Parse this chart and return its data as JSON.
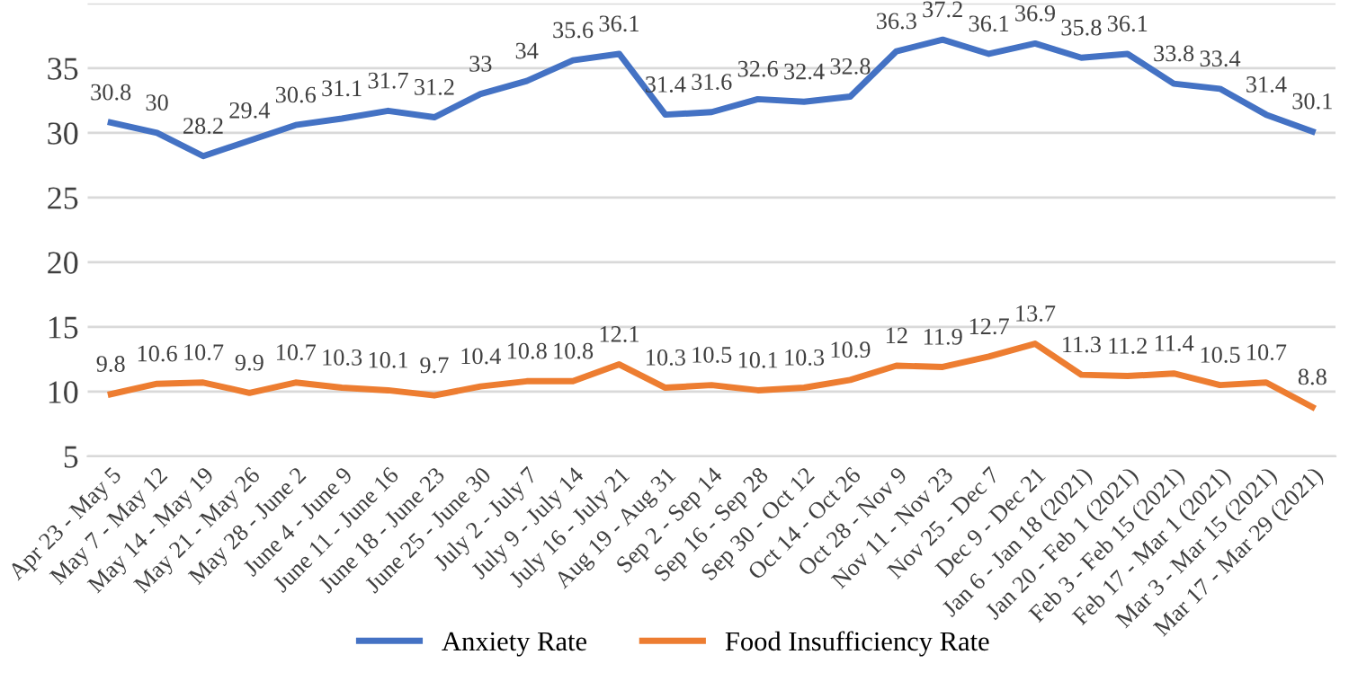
{
  "chart_data": {
    "type": "line",
    "categories": [
      "Apr 23 - May 5",
      "May 7 - May 12",
      "May 14 - May 19",
      "May 21 - May 26",
      "May 28 - June 2",
      "June 4 - June 9",
      "June 11 - June 16",
      "June 18 - June 23",
      "June 25 - June 30",
      "July 2 - July 7",
      "July 9 - July 14",
      "July 16 - July 21",
      "Aug 19 - Aug 31",
      "Sep 2 - Sep 14",
      "Sep 16 - Sep 28",
      "Sep 30 - Oct 12",
      "Oct 14 - Oct 26",
      "Oct 28 - Nov 9",
      "Nov 11 - Nov 23",
      "Nov 25 - Dec 7",
      "Dec 9 - Dec 21",
      "Jan 6 - Jan 18 (2021)",
      "Jan 20 - Feb 1 (2021)",
      "Feb 3 - Feb 15 (2021)",
      "Feb 17 - Mar 1 (2021)",
      "Mar 3 - Mar 15 (2021)",
      "Mar 17 - Mar 29 (2021)"
    ],
    "series": [
      {
        "name": "Anxiety Rate",
        "color": "#4472c4",
        "values": [
          30.8,
          30,
          28.2,
          29.4,
          30.6,
          31.1,
          31.7,
          31.2,
          33,
          34,
          35.6,
          36.1,
          31.4,
          31.6,
          32.6,
          32.4,
          32.8,
          36.3,
          37.2,
          36.1,
          36.9,
          35.8,
          36.1,
          33.8,
          33.4,
          31.4,
          30.1
        ]
      },
      {
        "name": "Food Insufficiency Rate",
        "color": "#ed7d31",
        "values": [
          9.8,
          10.6,
          10.7,
          9.9,
          10.7,
          10.3,
          10.1,
          9.7,
          10.4,
          10.8,
          10.8,
          12.1,
          10.3,
          10.5,
          10.1,
          10.3,
          10.9,
          12,
          11.9,
          12.7,
          13.7,
          11.3,
          11.2,
          11.4,
          10.5,
          10.7,
          8.8
        ]
      }
    ],
    "ylim": [
      5,
      40
    ],
    "yticks": [
      5,
      10,
      15,
      20,
      25,
      30,
      35,
      {
        "value": 40,
        "label": null
      }
    ],
    "grid": "y",
    "legend": "bottom",
    "data_labels": true,
    "marker": "none",
    "line_style": "solid"
  }
}
